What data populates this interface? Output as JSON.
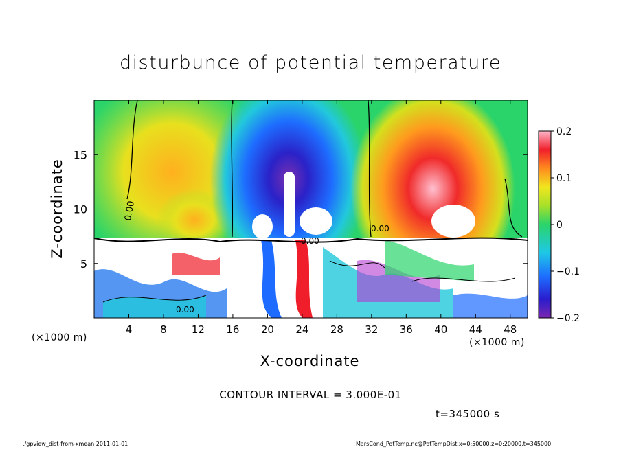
{
  "chart_data": {
    "type": "heatmap",
    "title": "disturbunce of potential temperature",
    "xlabel": "X-coordinate",
    "ylabel": "Z-coordinate",
    "x_unit": "(×1000 m)",
    "xlim": [
      0,
      50
    ],
    "ylim": [
      0,
      20
    ],
    "x_ticks": [
      4,
      8,
      12,
      16,
      20,
      24,
      28,
      32,
      36,
      40,
      44,
      48
    ],
    "y_ticks": [
      5,
      10,
      15
    ],
    "colorbar": {
      "range": [
        -0.2,
        0.2
      ],
      "ticks": [
        0.2,
        0.1,
        0,
        -0.1,
        -0.2
      ],
      "tick_labels": [
        "0.2",
        "0.1",
        "0",
        "−0.1",
        "−0.2"
      ]
    },
    "contour_label": "0.00",
    "features": [
      {
        "kind": "negative_anomaly",
        "x_center": 23,
        "z_center": 12,
        "value": -0.2
      },
      {
        "kind": "positive_anomaly",
        "x_center": 39,
        "z_center": 11,
        "value": 0.2
      },
      {
        "kind": "positive_anomaly",
        "x_center": 12,
        "z_center": 9,
        "value": 0.1
      }
    ],
    "contour_interval": "CONTOUR INTERVAL = 3.000E-01",
    "time": "t=345000 s"
  },
  "footer": {
    "left": "./gpview_dist-from-xmean  2011-01-01",
    "right": "MarsCond_PotTemp.nc@PotTempDist,x=0:50000,z=0:20000,t=345000"
  }
}
